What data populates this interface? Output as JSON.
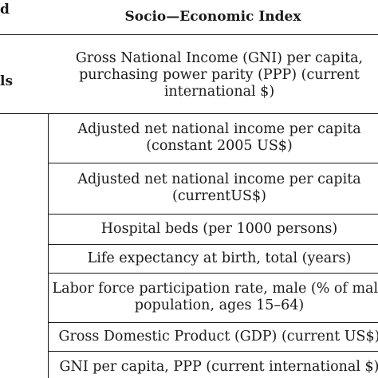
{
  "left_column_fragments": {
    "top": "d",
    "middle": "ls"
  },
  "header": {
    "title": "Socio—Economic Index"
  },
  "rows": [
    {
      "lines": [
        "Gross National Income (GNI) per capita,",
        "purchasing power parity (PPP) (current",
        "international $)"
      ]
    },
    {
      "lines": [
        "Adjusted net national income per capita",
        "(constant 2005 US$)"
      ]
    },
    {
      "lines": [
        "Adjusted net national income per capita",
        "(currentUS$)"
      ]
    },
    {
      "lines": [
        "Hospital beds (per 1000 persons)"
      ]
    },
    {
      "lines": [
        "Life expectancy at birth, total (years)"
      ]
    },
    {
      "lines": [
        "Labor force participation rate, male (% of male",
        "population, ages 15–64)"
      ]
    },
    {
      "lines": [
        "Gross Domestic Product (GDP) (current US$)"
      ]
    },
    {
      "lines": [
        "GNI per capita, PPP (current international $)"
      ]
    }
  ]
}
